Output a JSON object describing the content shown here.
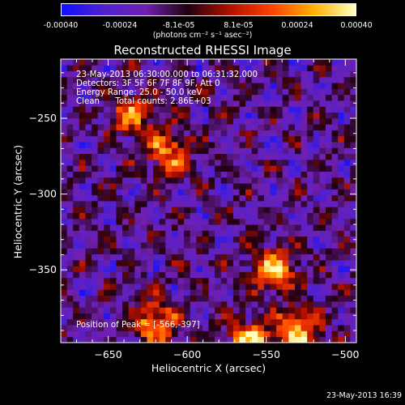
{
  "chart_data": {
    "type": "heatmap",
    "title": "Reconstructed RHESSI Image",
    "xlabel": "Heliocentric X (arcsec)",
    "ylabel": "Heliocentric Y (arcsec)",
    "xlim": [
      -680,
      -493
    ],
    "ylim": [
      -398,
      -211
    ],
    "x_ticks": [
      -650,
      -600,
      -550,
      -500
    ],
    "y_ticks": [
      -250,
      -300,
      -350
    ],
    "colorbar": {
      "range": [
        -0.0004,
        0.0004
      ],
      "ticks": [
        "-0.00040",
        "-0.00024",
        "-8.1e-05",
        "8.1e-05",
        "0.00024",
        "0.00040"
      ],
      "tick_values": [
        -0.0004,
        -0.00024,
        -8.1e-05,
        8.1e-05,
        0.00024,
        0.0004
      ],
      "units": "(photons cm⁻² s⁻¹ asec⁻²)",
      "colors": [
        "#1010ff",
        "#5020d0",
        "#7020b0",
        "#200010",
        "#b01000",
        "#ff4000",
        "#ffb000",
        "#ffffc0"
      ]
    },
    "annotations": [
      "23-May-2013 06:30:00.000 to 06:31:32.000",
      "Detectors: 3F 5F 6F 7F 8F 9F, Att 0",
      "Energy Range: 25.0 - 50.0 keV",
      "Clean      Total counts: 2.86E+03"
    ],
    "peak": {
      "label": "Position of Peak = [-566,-397]",
      "x": -566,
      "y": -397
    },
    "bright_regions": [
      {
        "x": -612,
        "y": -272,
        "value": 0.00026
      },
      {
        "x": -635,
        "y": -248,
        "value": 0.00022
      },
      {
        "x": -620,
        "y": -385,
        "value": 0.0003
      },
      {
        "x": -545,
        "y": -350,
        "value": 0.00032
      },
      {
        "x": -560,
        "y": -397,
        "value": 0.0004
      },
      {
        "x": -530,
        "y": -390,
        "value": 0.00034
      }
    ]
  },
  "footer": {
    "timestamp": "23-May-2013 16:39"
  }
}
